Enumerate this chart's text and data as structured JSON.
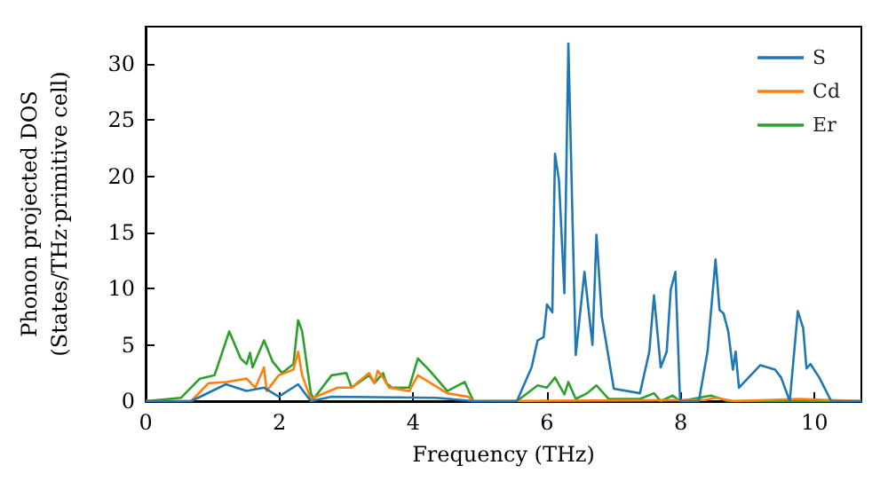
{
  "chart_data": {
    "type": "line",
    "xlabel": "Frequency (THz)",
    "ylabel": "Phonon projected DOS\n(States/THz·primitive cell)",
    "xlim": [
      0,
      10.7
    ],
    "ylim": [
      0,
      33.3
    ],
    "xticks": [
      0,
      2,
      4,
      6,
      8,
      10
    ],
    "yticks": [
      0,
      5,
      10,
      15,
      20,
      25,
      30
    ],
    "grid": false,
    "legend": "top right",
    "marker": "none",
    "line_style": "solid",
    "series": [
      {
        "name": "S",
        "color": "#1f77b4",
        "x": [
          0,
          0.68,
          1.2,
          1.51,
          1.77,
          1.99,
          2.28,
          2.47,
          2.78,
          4.34,
          4.9,
          5.55,
          5.77,
          5.86,
          5.95,
          6.0,
          6.08,
          6.12,
          6.18,
          6.26,
          6.32,
          6.43,
          6.56,
          6.68,
          6.74,
          6.82,
          7.0,
          7.39,
          7.53,
          7.6,
          7.7,
          7.79,
          7.85,
          7.92,
          7.99,
          8.27,
          8.4,
          8.52,
          8.58,
          8.64,
          8.71,
          8.78,
          8.82,
          8.87,
          9.19,
          9.41,
          9.5,
          9.63,
          9.75,
          9.83,
          9.88,
          9.94,
          10.07,
          10.25,
          10.7
        ],
        "values": [
          0,
          0,
          1.5,
          0.9,
          1.2,
          0.4,
          1.5,
          0,
          0.4,
          0.3,
          0,
          0,
          3.0,
          5.4,
          5.7,
          8.6,
          7.9,
          22.0,
          19.6,
          9.6,
          31.8,
          4.1,
          11.5,
          5.0,
          14.8,
          7.5,
          1.1,
          0.7,
          4.4,
          9.4,
          3.0,
          4.4,
          9.9,
          11.5,
          0,
          0,
          4.4,
          12.6,
          8.1,
          7.8,
          6.2,
          2.8,
          4.4,
          1.2,
          3.2,
          2.8,
          2.1,
          0,
          8.0,
          6.5,
          2.9,
          3.3,
          2.1,
          0,
          0
        ]
      },
      {
        "name": "Cd",
        "color": "#ff7f0e",
        "x": [
          0,
          0.68,
          0.94,
          1.2,
          1.51,
          1.64,
          1.77,
          1.81,
          1.99,
          2.21,
          2.28,
          2.34,
          2.47,
          2.87,
          3.08,
          3.34,
          3.42,
          3.47,
          3.55,
          3.64,
          3.94,
          4.07,
          4.51,
          4.82,
          4.9,
          8.36,
          8.52,
          8.8,
          9.76,
          10.7
        ],
        "values": [
          0,
          0,
          1.6,
          1.7,
          2.0,
          1.2,
          3.0,
          0.9,
          2.3,
          2.8,
          4.4,
          2.3,
          0.2,
          1.2,
          1.2,
          2.5,
          1.6,
          2.7,
          2.1,
          1.2,
          0.9,
          2.3,
          0.7,
          0.4,
          0,
          0.1,
          0.3,
          0,
          0.2,
          0
        ]
      },
      {
        "name": "Er",
        "color": "#2ca02c",
        "x": [
          0,
          0.53,
          0.81,
          1.03,
          1.25,
          1.42,
          1.51,
          1.56,
          1.6,
          1.77,
          1.9,
          2.04,
          2.21,
          2.28,
          2.34,
          2.47,
          2.51,
          2.78,
          3.0,
          3.08,
          3.34,
          3.42,
          3.55,
          3.6,
          3.68,
          3.94,
          4.07,
          4.25,
          4.51,
          4.77,
          4.9,
          5.55,
          5.86,
          6.0,
          6.12,
          6.26,
          6.32,
          6.43,
          6.6,
          6.74,
          6.92,
          7.39,
          7.6,
          7.7,
          7.88,
          7.99,
          8.45,
          8.71,
          10.7
        ],
        "values": [
          0,
          0.3,
          2.0,
          2.3,
          6.2,
          3.8,
          3.3,
          4.3,
          3.0,
          5.4,
          3.5,
          2.5,
          3.3,
          7.2,
          6.2,
          0.7,
          0.2,
          2.3,
          2.5,
          1.2,
          2.3,
          1.6,
          2.5,
          1.6,
          1.2,
          1.2,
          3.8,
          2.7,
          0.9,
          1.7,
          0,
          0,
          1.4,
          1.2,
          2.1,
          0.6,
          1.7,
          0.2,
          0.7,
          1.4,
          0.2,
          0.2,
          0.7,
          0,
          0.5,
          0,
          0.5,
          0,
          0
        ]
      }
    ]
  }
}
